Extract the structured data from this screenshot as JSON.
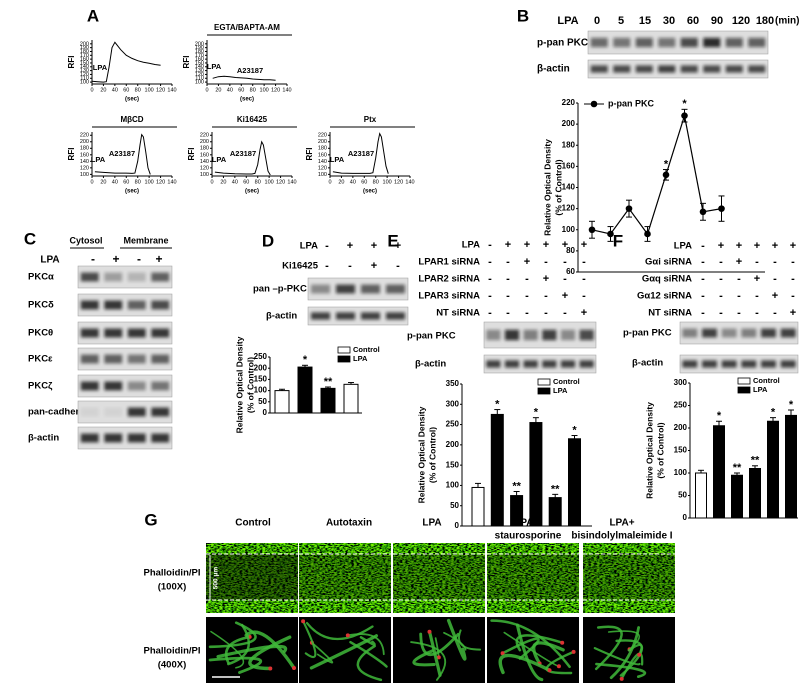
{
  "panel_letters": [
    "A",
    "B",
    "C",
    "D",
    "E",
    "F",
    "G"
  ],
  "panel_B": {
    "treatment": "LPA",
    "unit": "(min)",
    "blots": [
      "p-pan PKC",
      "β-actin"
    ]
  },
  "panel_C": {
    "fractions": [
      "Cytosol",
      "Membrane"
    ],
    "treatment": "LPA",
    "signs": [
      "-",
      "+",
      "-",
      "+"
    ],
    "blots": [
      "PKCα",
      "PKCδ",
      "PKCθ",
      "PKCε",
      "PKCζ",
      "pan-cadherin",
      "β-actin"
    ]
  },
  "panel_D": {
    "rows": [
      {
        "label": "LPA",
        "signs": [
          "-",
          "+",
          "+",
          "+"
        ]
      },
      {
        "label": "Ki16425",
        "signs": [
          "-",
          "-",
          "+",
          "-"
        ]
      }
    ],
    "blots": [
      "pan –p-PKC",
      "β-actin"
    ]
  },
  "panel_E": {
    "rows": [
      {
        "label": "LPA",
        "signs": [
          "-",
          "+",
          "+",
          "+",
          "+",
          "+"
        ]
      },
      {
        "label": "LPAR1 siRNA",
        "signs": [
          "-",
          "-",
          "+",
          "-",
          "-",
          "-"
        ]
      },
      {
        "label": "LPAR2 siRNA",
        "signs": [
          "-",
          "-",
          "-",
          "+",
          "-",
          "-"
        ]
      },
      {
        "label": "LPAR3 siRNA",
        "signs": [
          "-",
          "-",
          "-",
          "-",
          "+",
          "-"
        ]
      },
      {
        "label": "NT siRNA",
        "signs": [
          "-",
          "-",
          "-",
          "-",
          "-",
          "+"
        ]
      }
    ],
    "blots": [
      "p-pan PKC",
      "β-actin"
    ]
  },
  "panel_F": {
    "rows": [
      {
        "label": "LPA",
        "signs": [
          "-",
          "+",
          "+",
          "+",
          "+",
          "+"
        ]
      },
      {
        "label": "Gαi siRNA",
        "signs": [
          "-",
          "-",
          "+",
          "-",
          "-",
          "-"
        ]
      },
      {
        "label": "Gαq siRNA",
        "signs": [
          "-",
          "-",
          "-",
          "+",
          "-",
          "-"
        ]
      },
      {
        "label": "Gα12 siRNA",
        "signs": [
          "-",
          "-",
          "-",
          "-",
          "+",
          "-"
        ]
      },
      {
        "label": "NT siRNA",
        "signs": [
          "-",
          "-",
          "-",
          "-",
          "-",
          "+"
        ]
      }
    ],
    "blots": [
      "p-pan PKC",
      "β-actin"
    ]
  },
  "panel_G": {
    "columns": [
      {
        "lines": [
          "Control"
        ]
      },
      {
        "lines": [
          "Autotaxin"
        ]
      },
      {
        "lines": [
          "LPA"
        ]
      },
      {
        "lines": [
          "LPA +",
          "staurosporine"
        ]
      },
      {
        "lines": [
          "LPA+",
          "bisindolylmaleimide I"
        ]
      }
    ],
    "rows": [
      {
        "lines": [
          "Phalloidin/PI",
          "(100X)"
        ]
      },
      {
        "lines": [
          "Phalloidin/PI",
          "(400X)"
        ]
      }
    ],
    "scale_bar": "500 μm"
  },
  "chart_data": [
    {
      "type": "line",
      "ylabel": "RFI",
      "xlabel": "(sec)",
      "annotations": [
        "LPA"
      ],
      "color": "#000000",
      "x": [
        0,
        10,
        20,
        25,
        30,
        35,
        40,
        50,
        60,
        70,
        80,
        90,
        100,
        110,
        120
      ],
      "values": [
        102,
        101,
        100,
        101,
        140,
        190,
        204,
        185,
        170,
        162,
        156,
        152,
        149,
        146,
        144
      ],
      "xlim": [
        0,
        140
      ],
      "ylim": [
        95,
        210
      ],
      "xticks": [
        0,
        20,
        40,
        60,
        80,
        100,
        120,
        140
      ],
      "yticks": [
        100,
        110,
        120,
        130,
        140,
        150,
        160,
        170,
        180,
        190,
        200
      ]
    },
    {
      "type": "line",
      "title": "EGTA/BAPTA-AM",
      "ylabel": "RFI",
      "xlabel": "(sec)",
      "annotations": [
        "LPA",
        "A23187"
      ],
      "color": "#000000",
      "x": [
        10,
        20,
        30,
        40,
        50,
        60,
        70,
        80,
        90,
        100,
        110,
        120
      ],
      "values": [
        110,
        114,
        115,
        114,
        112,
        111,
        110,
        108,
        107,
        106,
        106,
        105
      ],
      "xlim": [
        0,
        140
      ],
      "ylim": [
        95,
        210
      ],
      "xticks": [
        0,
        20,
        40,
        60,
        80,
        100,
        120,
        140
      ],
      "yticks": [
        100,
        110,
        120,
        130,
        140,
        150,
        160,
        170,
        180,
        190,
        200
      ]
    },
    {
      "type": "line",
      "title": "MβCD",
      "ylabel": "RFI",
      "xlabel": "(sec)",
      "annotations": [
        "LPA",
        "A23187"
      ],
      "color": "#000000",
      "x": [
        5,
        20,
        40,
        60,
        70,
        75,
        80,
        84,
        87,
        90,
        94,
        98,
        102
      ],
      "values": [
        108,
        106,
        104,
        104,
        103,
        104,
        140,
        190,
        222,
        215,
        170,
        120,
        100
      ],
      "xlim": [
        0,
        140
      ],
      "ylim": [
        95,
        230
      ],
      "xticks": [
        0,
        20,
        40,
        60,
        80,
        100,
        120,
        140
      ],
      "yticks": [
        100,
        120,
        140,
        160,
        180,
        200,
        220
      ]
    },
    {
      "type": "line",
      "title": "Ki16425",
      "ylabel": "RFI",
      "xlabel": "(sec)",
      "annotations": [
        "LPA",
        "A23187"
      ],
      "color": "#000000",
      "x": [
        5,
        20,
        40,
        60,
        70,
        75,
        80,
        84,
        87,
        90,
        94,
        98,
        102
      ],
      "values": [
        107,
        104,
        102,
        101,
        101,
        103,
        130,
        175,
        200,
        190,
        150,
        110,
        98
      ],
      "xlim": [
        0,
        140
      ],
      "ylim": [
        95,
        230
      ],
      "xticks": [
        0,
        20,
        40,
        60,
        80,
        100,
        120,
        140
      ],
      "yticks": [
        100,
        120,
        140,
        160,
        180,
        200,
        220
      ]
    },
    {
      "type": "line",
      "title": "Ptx",
      "ylabel": "RFI",
      "xlabel": "(sec)",
      "annotations": [
        "LPA",
        "A23187"
      ],
      "color": "#000000",
      "x": [
        5,
        20,
        40,
        60,
        70,
        75,
        80,
        84,
        87,
        90,
        94,
        98,
        102
      ],
      "values": [
        108,
        104,
        103,
        103,
        103,
        105,
        150,
        200,
        225,
        215,
        170,
        125,
        102
      ],
      "xlim": [
        0,
        140
      ],
      "ylim": [
        95,
        230
      ],
      "xticks": [
        0,
        20,
        40,
        60,
        80,
        100,
        120,
        140
      ],
      "yticks": [
        100,
        120,
        140,
        160,
        180,
        200,
        220
      ]
    },
    {
      "type": "line",
      "categories": [
        0,
        5,
        15,
        30,
        60,
        90,
        120,
        180
      ],
      "series": [
        {
          "name": "p-pan PKC",
          "color": "#000000",
          "values": [
            100,
            96,
            120,
            96,
            152,
            208,
            117,
            120
          ],
          "errors": [
            8,
            7,
            8,
            7,
            5,
            6,
            8,
            12
          ]
        }
      ],
      "ylabel": [
        "Relative Optical Density",
        "(% of Control)"
      ],
      "annotations": [
        "*",
        "*"
      ],
      "ylim": [
        60,
        220
      ],
      "yticks": [
        60,
        80,
        100,
        120,
        140,
        160,
        180,
        200,
        220
      ]
    },
    {
      "type": "bar",
      "series": [
        {
          "name": "Control",
          "color": "#ffffff",
          "values": [
            100,
            null,
            null,
            128
          ],
          "errors": [
            6,
            null,
            null,
            8
          ]
        },
        {
          "name": "LPA",
          "color": "#000000",
          "values": [
            null,
            205,
            110,
            null
          ],
          "errors": [
            null,
            8,
            6,
            null
          ]
        }
      ],
      "ylabel": [
        "Relative Optical Density",
        "(% of Control)"
      ],
      "annotations": [
        "*",
        "**"
      ],
      "ylim": [
        0,
        250
      ],
      "yticks": [
        0,
        50,
        100,
        150,
        200,
        250
      ]
    },
    {
      "type": "bar",
      "series": [
        {
          "name": "Control",
          "color": "#ffffff",
          "values": [
            95,
            null,
            null,
            null,
            null,
            null
          ],
          "errors": [
            10,
            null,
            null,
            null,
            null,
            null
          ]
        },
        {
          "name": "LPA",
          "color": "#000000",
          "values": [
            null,
            275,
            75,
            255,
            70,
            215
          ],
          "errors": [
            null,
            12,
            10,
            12,
            8,
            8
          ]
        }
      ],
      "ylabel": [
        "Relative Optical Density",
        "(% of Control)"
      ],
      "annotations": [
        "*",
        "**",
        "*",
        "**",
        "*"
      ],
      "ylim": [
        0,
        350
      ],
      "yticks": [
        0,
        50,
        100,
        150,
        200,
        250,
        300,
        350
      ]
    },
    {
      "type": "bar",
      "series": [
        {
          "name": "Control",
          "color": "#ffffff",
          "values": [
            100,
            null,
            null,
            null,
            null,
            null
          ],
          "errors": [
            6,
            null,
            null,
            null,
            null,
            null
          ]
        },
        {
          "name": "LPA",
          "color": "#000000",
          "values": [
            null,
            205,
            95,
            110,
            215,
            228
          ],
          "errors": [
            null,
            10,
            5,
            6,
            8,
            12
          ]
        }
      ],
      "ylabel": [
        "Relative Optical Density",
        "(% of Control)"
      ],
      "annotations": [
        "*",
        "**",
        "**",
        "*",
        "*"
      ],
      "ylim": [
        0,
        300
      ],
      "yticks": [
        0,
        50,
        100,
        150,
        200,
        250,
        300
      ]
    }
  ]
}
